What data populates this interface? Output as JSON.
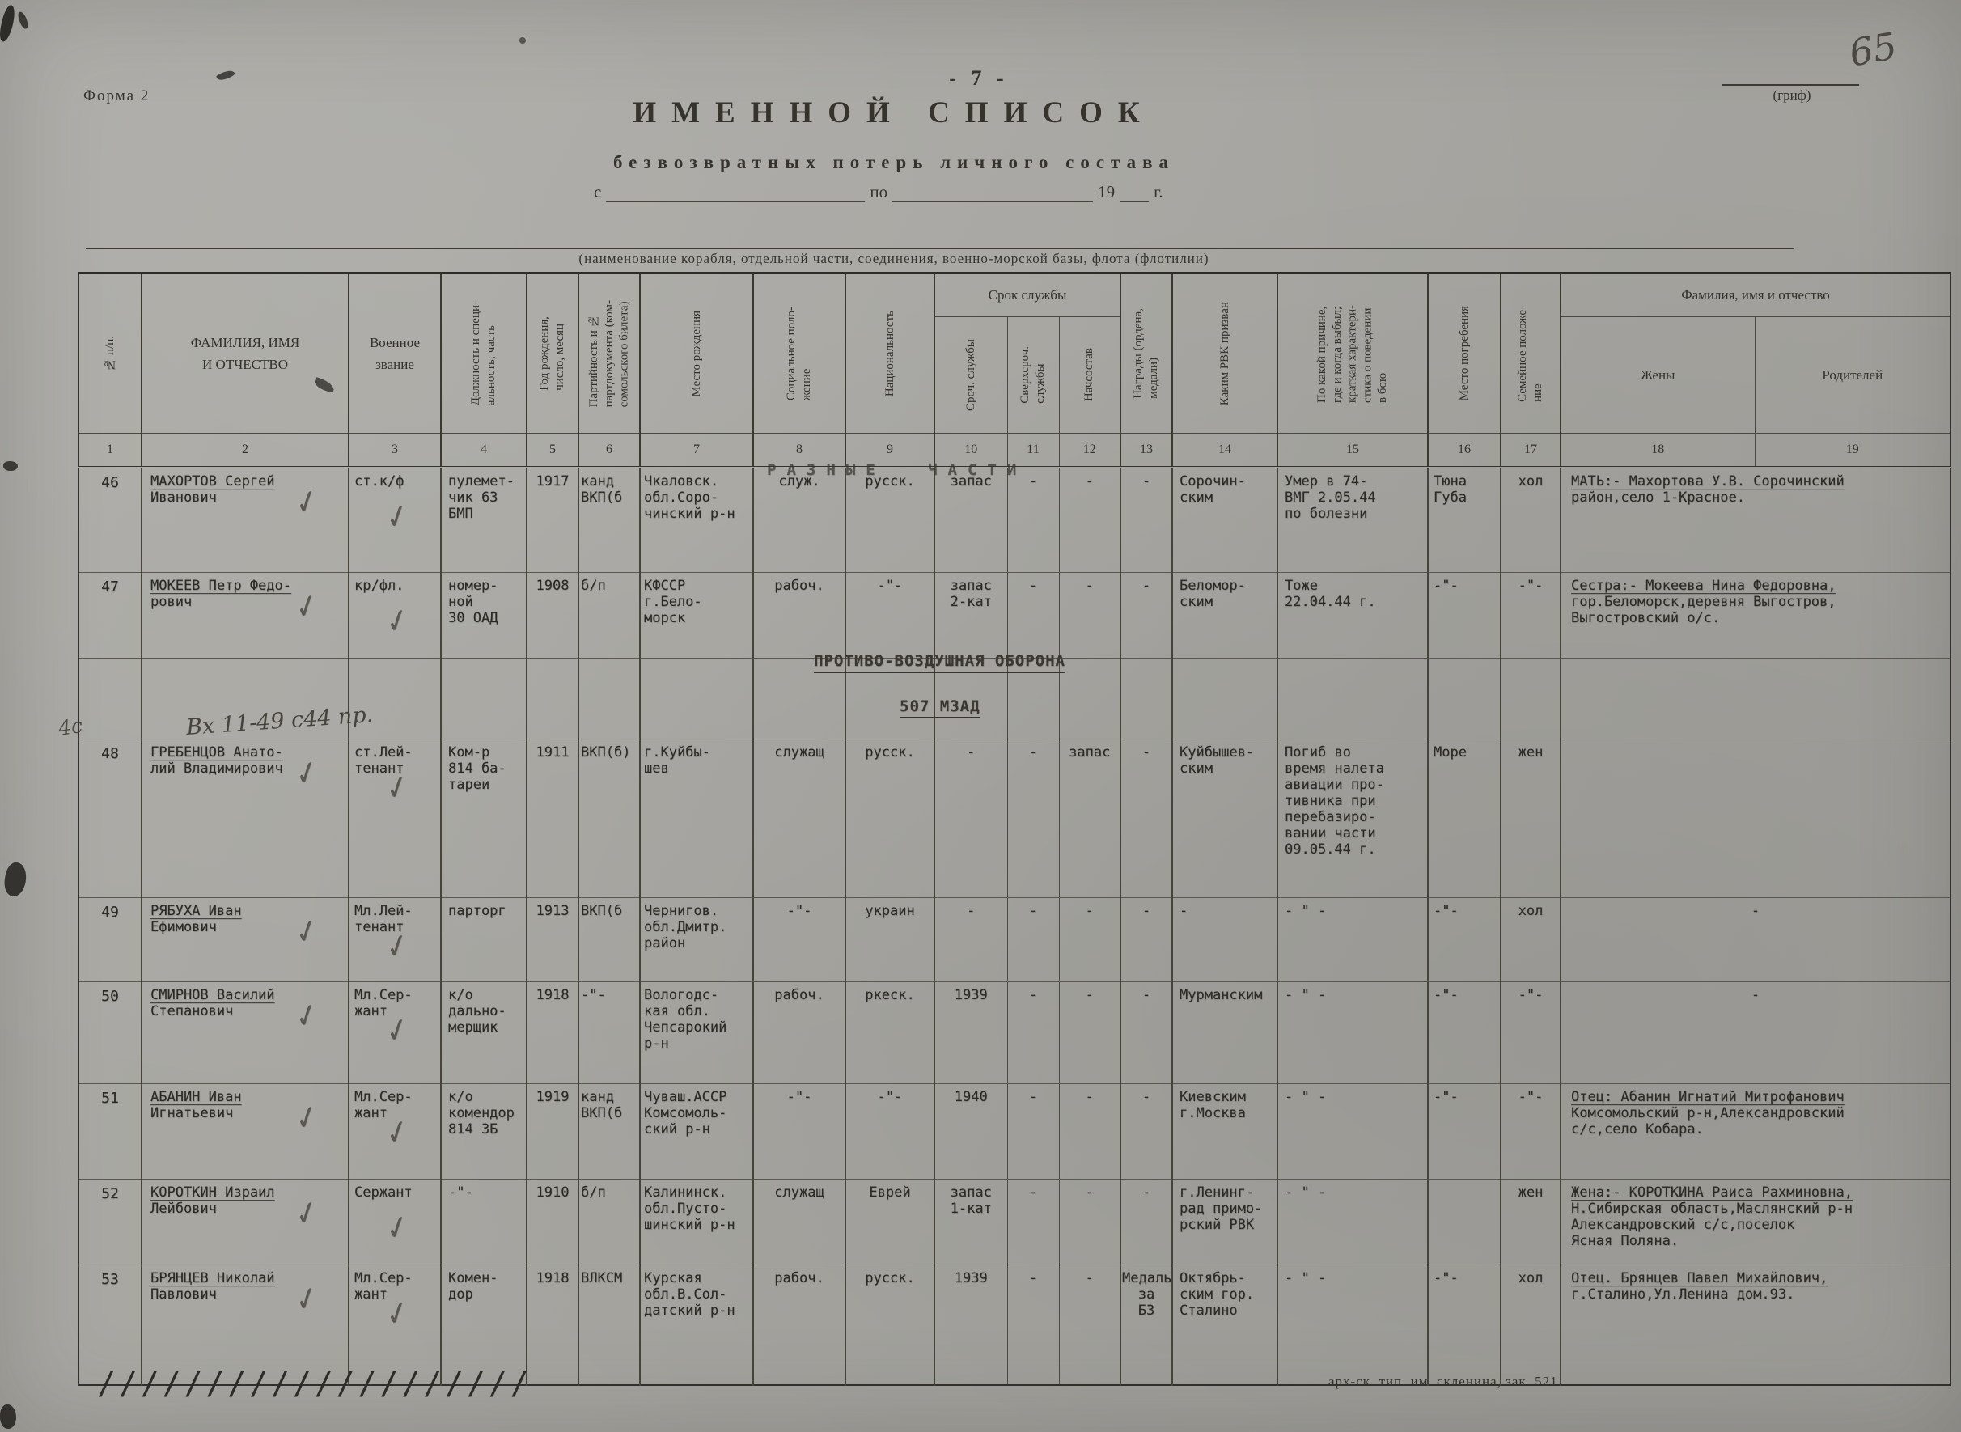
{
  "page": {
    "form_label": "Форма 2",
    "page_number": "- 7 -",
    "grif_label": "(гриф)",
    "handwritten_number": "65",
    "title": "ИМЕННОЙ СПИСОК",
    "subtitle": "безвозвратных потерь личного состава",
    "date_line": {
      "from": "с",
      "to": "по",
      "year": "19",
      "year_suffix": "г."
    },
    "org_caption": "(наименование корабля, отдельной части, соединения, военно-морской базы, флота (флотилии)"
  },
  "sections": {
    "razn": "РАЗНЫЕ ЧАСТИ",
    "pvo": "ПРОТИВО-ВОЗДУШНАЯ ОБОРОНА",
    "mzad": "507 МЗАД"
  },
  "notes": {
    "handnote_48": "Вх 11-49 с44 пр.",
    "margin_note": "4с"
  },
  "footer": {
    "hatch": "////////////////////",
    "imprint": "арх-ск. тип. им. скленина, зак. 521"
  },
  "table": {
    "group_service": "Срок службы",
    "group_family": "Фамилия, имя и отчество",
    "headers": {
      "c1": "№ п/п.",
      "c2": "ФАМИЛИЯ, ИМЯ\nИ ОТЧЕСТВО",
      "c3": "Военное\nзвание",
      "c4": "Должность и специ-\nальность; часть",
      "c5": "Год рождения,\nчисло, месяц",
      "c6": "Партийность и №\nпартдокумента (ком-\nсомольского билета)",
      "c7": "Место рождения",
      "c8": "Социальное поло-\nжение",
      "c9": "Национальность",
      "c10": "Сроч. службы",
      "c11": "Сверхсроч.\nслужбы",
      "c12": "Начсостав",
      "c13": "Награды (ордена,\nмедали)",
      "c14": "Каким РВК призван",
      "c15": "По какой причине,\nгде и когда выбыл;\nкраткая характери-\nстика о поведении\nв бою",
      "c16": "Место погребения",
      "c17": "Семейное положе-\nние",
      "c18": "Жены",
      "c19": "Родителей"
    },
    "numbers": [
      "1",
      "2",
      "3",
      "4",
      "5",
      "6",
      "7",
      "8",
      "9",
      "10",
      "11",
      "12",
      "13",
      "14",
      "15",
      "16",
      "17",
      "18",
      "19"
    ],
    "rows": [
      {
        "type": "data",
        "h": 130,
        "num": "46",
        "name": "МАХОРТОВ Сергей\nИванович",
        "rank": "ст.к/ф",
        "duty": "пулемет-\nчик 63\nБМП",
        "born": "1917",
        "party": "канд\nВКП(б",
        "birthplace": "Чкаловск.\nобл.Соро-\nчинский р-н",
        "social": "служ.",
        "nationality": "русск.",
        "term": "запас",
        "extra_term": "-",
        "officers": "-",
        "awards": "-",
        "rvk": "Сорочин-\nским",
        "cause": "Умер в 74-\nВМГ 2.05.44\nпо болезни",
        "burial": "Тюна\nГуба",
        "family": "хол",
        "relatives": "МАТЬ:- Махортова У.В. Сорочинский\nрайон,село 1-Красное.",
        "checks": [
          "name",
          "rank"
        ]
      },
      {
        "type": "data",
        "h": 106,
        "num": "47",
        "name": "МОКЕЕВ Петр Федо-\nрович",
        "rank": "кр/фл.",
        "duty": "номер-\nной\n30 ОАД",
        "born": "1908",
        "party": "б/п",
        "birthplace": "КФССР\nг.Бело-\nморск",
        "social": "рабоч.",
        "nationality": "-\"-",
        "term": "запас\n2-кат",
        "extra_term": "-",
        "officers": "-",
        "awards": "-",
        "rvk": "Беломор-\nским",
        "cause": "Тоже\n22.04.44 г.",
        "burial": "-\"-",
        "family": "-\"-",
        "relatives": "Сестра:- Мокеева Нина Федоровна,\nгор.Беломорск,деревня Выгостров,\nВыгостровский о/с.",
        "checks": [
          "name",
          "rank"
        ]
      },
      {
        "type": "spacer",
        "h": 100
      },
      {
        "type": "data",
        "h": 196,
        "num": "48",
        "name": "ГРЕБЕНЦОВ Анато-\nлий Владимирович",
        "rank": "ст.Лей-\nтенант",
        "duty": "Ком-р\n814 ба-\nтареи",
        "born": "1911",
        "party": "ВКП(б)",
        "birthplace": "г.Куйбы-\nшев",
        "social": "служащ",
        "nationality": "русск.",
        "term": "-",
        "extra_term": "-",
        "officers": "запас",
        "awards": "-",
        "rvk": "Куйбышев-\nским",
        "cause": "Погиб во\nвремя налета\nавиации про-\nтивника при\nперебазиро-\nвании части\n09.05.44 г.",
        "burial": "Море",
        "family": "жен",
        "relatives": "",
        "checks": [
          "name",
          "rank"
        ]
      },
      {
        "type": "data",
        "h": 104,
        "num": "49",
        "name": "РЯБУХА Иван\nЕфимович",
        "rank": "Мл.Лей-\nтенант",
        "duty": "парторг",
        "born": "1913",
        "party": "ВКП(б",
        "birthplace": "Чернигов.\nобл.Дмитр.\nрайон",
        "social": "-\"-",
        "nationality": "украин",
        "term": "-",
        "extra_term": "-",
        "officers": "-",
        "awards": "-",
        "rvk": "-",
        "cause": "- \" -",
        "burial": "-\"-",
        "family": "хол",
        "relatives": "-",
        "checks": [
          "name",
          "rank"
        ]
      },
      {
        "type": "data",
        "h": 126,
        "num": "50",
        "name": "СМИРНОВ Василий\nСтепанович",
        "rank": "Мл.Сер-\nжант",
        "duty": "к/о\nдально-\nмерщик",
        "born": "1918",
        "party": "-\"-",
        "birthplace": "Вологодс-\nкая обл.\nЧепсарокий\nр-н",
        "social": "рабоч.",
        "nationality": "ркеск.",
        "term": "1939",
        "extra_term": "-",
        "officers": "-",
        "awards": "-",
        "rvk": "Мурманским",
        "cause": "- \" -",
        "burial": "-\"-",
        "family": "-\"-",
        "relatives": "-",
        "checks": [
          "name",
          "rank"
        ]
      },
      {
        "type": "data",
        "h": 118,
        "num": "51",
        "name": "АБАНИН Иван\nИгнатьевич",
        "rank": "Мл.Сер-\nжант",
        "duty": "к/о\nкомендор\n814 ЗБ",
        "born": "1919",
        "party": "канд\nВКП(б",
        "birthplace": "Чуваш.АССР\nКомсомоль-\nский р-н",
        "social": "-\"-",
        "nationality": "-\"-",
        "term": "1940",
        "extra_term": "-",
        "officers": "-",
        "awards": "-",
        "rvk": "Киевским\nг.Москва",
        "cause": "- \" -",
        "burial": "-\"-",
        "family": "-\"-",
        "relatives": "Отец: Абанин Игнатий Митрофанович\nКомсомольский р-н,Александровский\nс/с,село Кобара.",
        "checks": [
          "name",
          "rank"
        ]
      },
      {
        "type": "data",
        "h": 106,
        "num": "52",
        "name": "КОРОТКИН Израил\nЛейбович",
        "rank": "Сержант",
        "duty": "-\"-",
        "born": "1910",
        "party": "б/п",
        "birthplace": "Калининск.\nобл.Пусто-\nшинский р-н",
        "social": "служащ",
        "nationality": "Еврей",
        "term": "запас\n1-кат",
        "extra_term": "-",
        "officers": "-",
        "awards": "-",
        "rvk": "г.Ленинг-\nрад примо-\nрский РВК",
        "cause": "- \" -",
        "burial": "",
        "family": "жен",
        "relatives": "Жена:- КОРОТКИНА Раиса Рахминовна,\nН.Сибирская область,Маслянский р-н\nАлександровский с/с,поселок\nЯсная Поляна.",
        "checks": [
          "name",
          "rank"
        ]
      },
      {
        "type": "data",
        "h": 148,
        "num": "53",
        "name": "БРЯНЦЕВ Николай\nПавлович",
        "rank": "Мл.Сер-\nжант",
        "duty": "Комен-\nдор",
        "born": "1918",
        "party": "ВЛКСМ",
        "birthplace": "Курская\nобл.В.Сол-\nдатский р-н",
        "social": "рабоч.",
        "nationality": "русск.",
        "term": "1939",
        "extra_term": "-",
        "officers": "-",
        "awards": "Медаль\nза\nБЗ",
        "rvk": "Октябрь-\nским гор.\nСталино",
        "cause": "- \" -",
        "burial": "-\"-",
        "family": "хол",
        "relatives": "Отец. Брянцев Павел Михайлович,\nг.Сталино,Ул.Ленина дом.93.",
        "checks": [
          "name",
          "rank"
        ]
      }
    ]
  }
}
